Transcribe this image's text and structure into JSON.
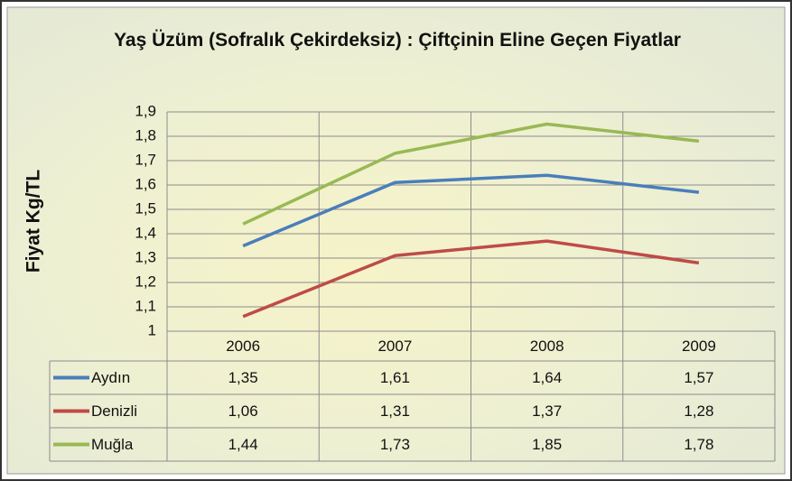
{
  "chart_data": {
    "type": "line",
    "title": "Yaş Üzüm (Sofralık Çekirdeksiz) : Çiftçinin Eline Geçen Fiyatlar",
    "y_label": "Fiyat Kg/TL",
    "categories": [
      "2006",
      "2007",
      "2008",
      "2009"
    ],
    "series": [
      {
        "name": "Aydın",
        "color": "#4a7ebb",
        "values": [
          1.35,
          1.61,
          1.64,
          1.57
        ],
        "value_labels": [
          "1,35",
          "1,61",
          "1,64",
          "1,57"
        ]
      },
      {
        "name": "Denizli",
        "color": "#be4b48",
        "values": [
          1.06,
          1.31,
          1.37,
          1.28
        ],
        "value_labels": [
          "1,06",
          "1,31",
          "1,37",
          "1,28"
        ]
      },
      {
        "name": "Muğla",
        "color": "#98b954",
        "values": [
          1.44,
          1.73,
          1.85,
          1.78
        ],
        "value_labels": [
          "1,44",
          "1,73",
          "1,85",
          "1,78"
        ]
      }
    ],
    "ylim": [
      1,
      1.9
    ],
    "yticks": [
      1,
      {
        "value": 1.1,
        "label": "1,1"
      },
      {
        "value": 1.2,
        "label": "1,2"
      },
      {
        "value": 1.3,
        "label": "1,3"
      },
      {
        "value": 1.4,
        "label": "1,4"
      },
      {
        "value": 1.5,
        "label": "1,5"
      },
      {
        "value": 1.6,
        "label": "1,6"
      },
      {
        "value": 1.7,
        "label": "1,7"
      },
      {
        "value": 1.8,
        "label": "1,8"
      },
      {
        "value": 1.9,
        "label": "1,9"
      }
    ],
    "grid": true,
    "data_table": true
  }
}
